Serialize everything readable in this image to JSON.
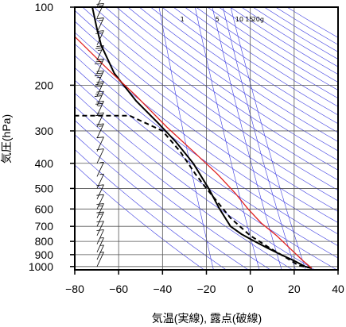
{
  "chart_data": {
    "type": "line",
    "xlabel": "気温(実線), 露点(破線)",
    "ylabel": "気圧(hPa)",
    "xlim": [
      -80,
      40
    ],
    "ylim": [
      1030,
      100
    ],
    "y_scale": "log",
    "x_ticks": [
      -80,
      -60,
      -40,
      -20,
      0,
      20,
      40
    ],
    "x_tick_labels": [
      "−80",
      "−60",
      "−40",
      "−20",
      "0",
      "20",
      "40"
    ],
    "y_ticks": [
      100,
      200,
      300,
      400,
      500,
      600,
      700,
      800,
      900,
      1000
    ],
    "y_tick_labels": [
      "100",
      "200",
      "300",
      "400",
      "500",
      "600",
      "700",
      "800",
      "900",
      "1000"
    ],
    "mixing_ratio_labels": [
      "1",
      "5",
      "10",
      "15",
      "20g"
    ],
    "colors": {
      "guides": "#3a3ae0",
      "reference": "#e02020",
      "temperature": "#000000",
      "dewpoint": "#000000"
    },
    "series": [
      {
        "style": "solid",
        "color": "#000000",
        "points": [
          [
            28,
            1015
          ],
          [
            25,
            1000
          ],
          [
            20,
            950
          ],
          [
            14,
            900
          ],
          [
            8,
            850
          ],
          [
            2,
            800
          ],
          [
            -4,
            750
          ],
          [
            -9,
            700
          ],
          [
            -14,
            600
          ],
          [
            -19,
            500
          ],
          [
            -26,
            400
          ],
          [
            -34,
            330
          ],
          [
            -42,
            280
          ],
          [
            -52,
            230
          ],
          [
            -62,
            180
          ],
          [
            -68,
            140
          ],
          [
            -70,
            120
          ],
          [
            -72,
            100
          ]
        ]
      },
      {
        "style": "dashed",
        "color": "#000000",
        "points": [
          [
            28,
            1015
          ],
          [
            22,
            990
          ],
          [
            16,
            920
          ],
          [
            9,
            850
          ],
          [
            0,
            760
          ],
          [
            -9,
            650
          ],
          [
            -20,
            500
          ],
          [
            -25,
            440
          ],
          [
            -32,
            360
          ],
          [
            -40,
            300
          ],
          [
            -55,
            262
          ],
          [
            -80,
            262
          ]
        ]
      },
      {
        "style": "solid",
        "color": "#e02020",
        "points": [
          [
            28,
            1015
          ],
          [
            24,
            950
          ],
          [
            18,
            850
          ],
          [
            12,
            760
          ],
          [
            5,
            680
          ],
          [
            -1,
            600
          ],
          [
            -7,
            520
          ],
          [
            -15,
            440
          ],
          [
            -26,
            360
          ],
          [
            -38,
            290
          ],
          [
            -52,
            220
          ],
          [
            -66,
            170
          ],
          [
            -82,
            125
          ]
        ]
      }
    ],
    "wind_barbs": [
      {
        "p": 100,
        "speed": 10
      },
      {
        "p": 110,
        "speed": 15
      },
      {
        "p": 125,
        "speed": 15
      },
      {
        "p": 140,
        "speed": 20
      },
      {
        "p": 160,
        "speed": 25
      },
      {
        "p": 180,
        "speed": 30
      },
      {
        "p": 200,
        "speed": 35
      },
      {
        "p": 220,
        "speed": 30
      },
      {
        "p": 240,
        "speed": 30
      },
      {
        "p": 262,
        "speed": 25
      },
      {
        "p": 290,
        "speed": 20
      },
      {
        "p": 320,
        "speed": 15
      },
      {
        "p": 360,
        "speed": 10
      },
      {
        "p": 400,
        "speed": 10
      },
      {
        "p": 450,
        "speed": 5
      },
      {
        "p": 500,
        "speed": 5
      },
      {
        "p": 550,
        "speed": 10
      },
      {
        "p": 600,
        "speed": 10
      },
      {
        "p": 650,
        "speed": 15
      },
      {
        "p": 700,
        "speed": 15
      },
      {
        "p": 760,
        "speed": 10
      },
      {
        "p": 820,
        "speed": 10
      },
      {
        "p": 880,
        "speed": 5
      },
      {
        "p": 940,
        "speed": 5
      },
      {
        "p": 1000,
        "speed": 5
      }
    ]
  }
}
